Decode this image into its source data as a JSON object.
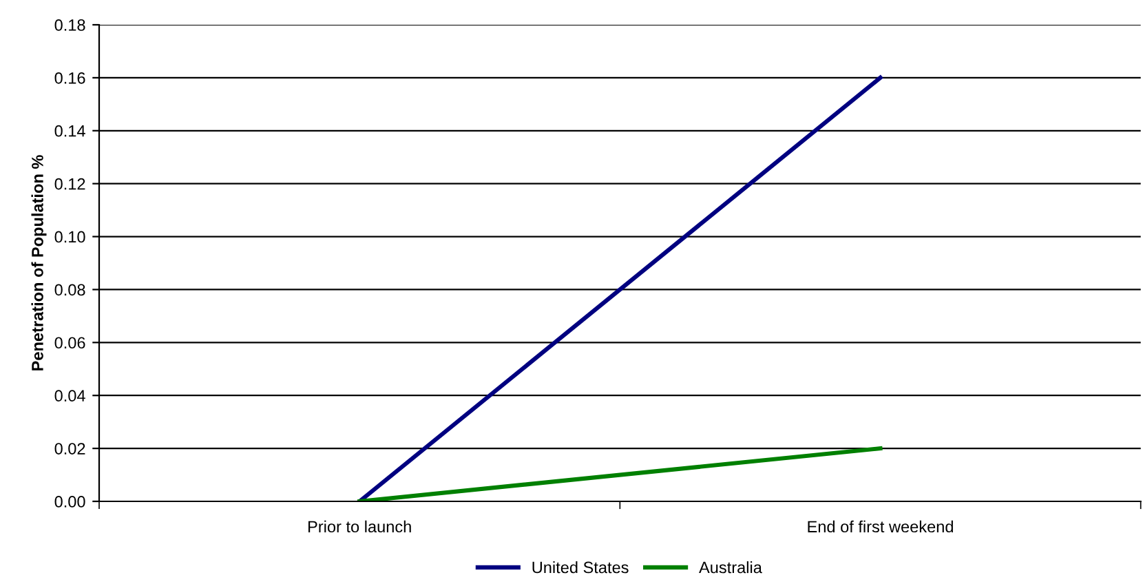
{
  "chart_data": {
    "type": "line",
    "ylabel": "Penetration of Population %",
    "categories": [
      "Prior to launch",
      "End of first weekend"
    ],
    "series": [
      {
        "name": "United States",
        "color": "#000080",
        "values": [
          0.0,
          0.16
        ]
      },
      {
        "name": "Australia",
        "color": "#008000",
        "values": [
          0.0,
          0.02
        ]
      }
    ],
    "ylim": [
      0,
      0.18
    ],
    "yticks": [
      {
        "value": 0,
        "label": "0.00"
      },
      {
        "value": 0.02,
        "label": "0.02"
      },
      {
        "value": 0.04,
        "label": "0.04"
      },
      {
        "value": 0.06,
        "label": "0.06"
      },
      {
        "value": 0.08,
        "label": "0.08"
      },
      {
        "value": 0.1,
        "label": "0.10"
      },
      {
        "value": 0.12,
        "label": "0.12"
      },
      {
        "value": 0.14,
        "label": "0.14"
      },
      {
        "value": 0.16,
        "label": "0.16"
      },
      {
        "value": 0.18,
        "label": "0.18"
      }
    ],
    "grid": "y",
    "legend": "bottom",
    "marker": "none",
    "line_style": "solid"
  }
}
